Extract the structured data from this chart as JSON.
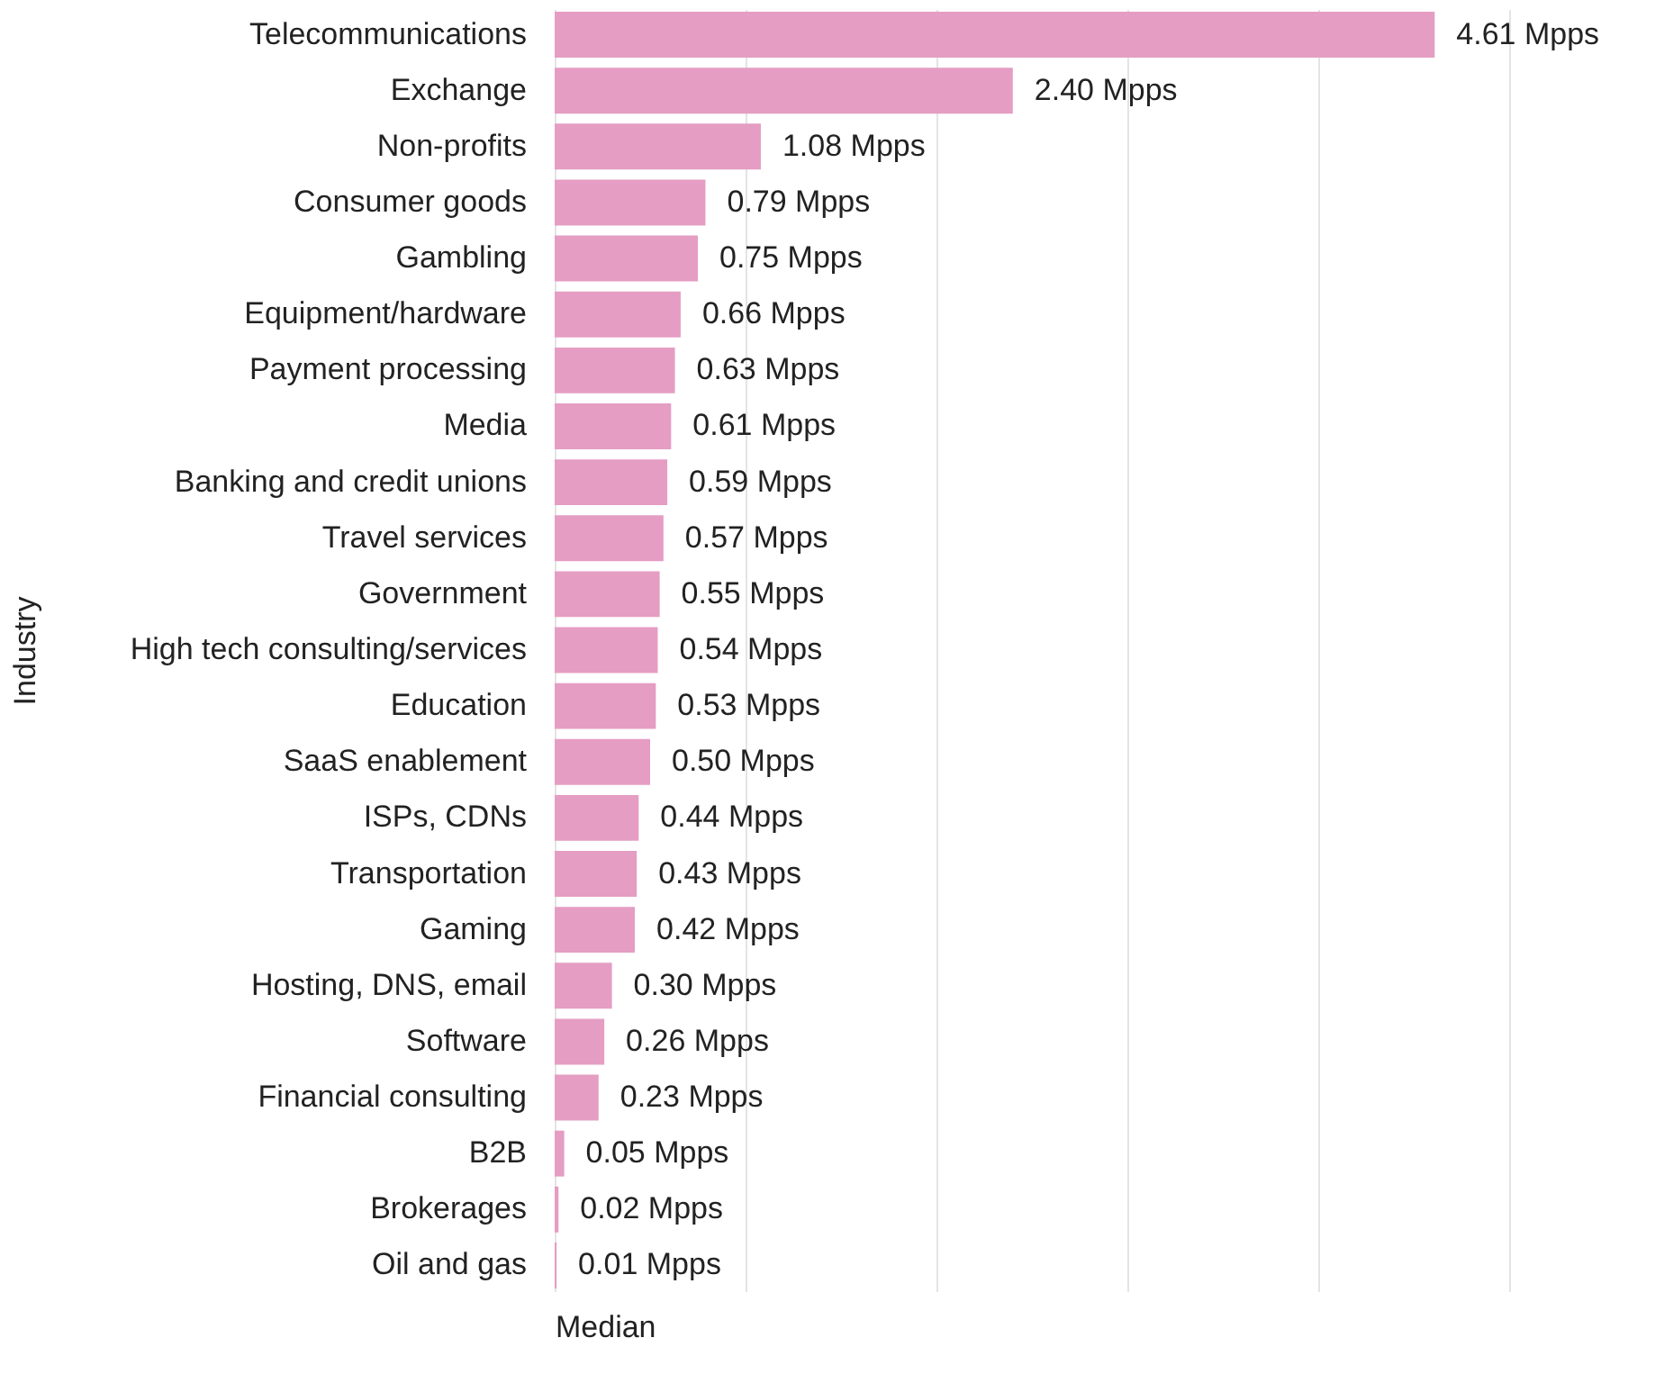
{
  "chart_data": {
    "type": "bar",
    "orientation": "horizontal",
    "xlabel": "Median",
    "ylabel": "Industry",
    "categories": [
      "Telecommunications",
      "Exchange",
      "Non-profits",
      "Consumer goods",
      "Gambling",
      "Equipment/hardware",
      "Payment processing",
      "Media",
      "Banking and credit unions",
      "Travel services",
      "Government",
      "High tech consulting/services",
      "Education",
      "SaaS enablement",
      "ISPs, CDNs",
      "Transportation",
      "Gaming",
      "Hosting, DNS, email",
      "Software",
      "Financial consulting",
      "B2B",
      "Brokerages",
      "Oil and gas"
    ],
    "values": [
      4.61,
      2.4,
      1.08,
      0.79,
      0.75,
      0.66,
      0.63,
      0.61,
      0.59,
      0.57,
      0.55,
      0.54,
      0.53,
      0.5,
      0.44,
      0.43,
      0.42,
      0.3,
      0.26,
      0.23,
      0.05,
      0.02,
      0.01
    ],
    "value_labels": [
      "4.61 Mpps",
      "2.40 Mpps",
      "1.08 Mpps",
      "0.79 Mpps",
      "0.75 Mpps",
      "0.66 Mpps",
      "0.63 Mpps",
      "0.61 Mpps",
      "0.59 Mpps",
      "0.57 Mpps",
      "0.55 Mpps",
      "0.54 Mpps",
      "0.53 Mpps",
      "0.50 Mpps",
      "0.44 Mpps",
      "0.43 Mpps",
      "0.42 Mpps",
      "0.30 Mpps",
      "0.26 Mpps",
      "0.23 Mpps",
      "0.05 Mpps",
      "0.02 Mpps",
      "0.01 Mpps"
    ],
    "color": "#e59dc3",
    "xlim": [
      0,
      5
    ],
    "xticks": [
      {
        "value": 0,
        "label": null
      },
      {
        "value": 1,
        "label": null
      },
      {
        "value": 2,
        "label": null
      },
      {
        "value": 3,
        "label": null
      },
      {
        "value": 4,
        "label": null
      },
      {
        "value": 5,
        "label": null
      }
    ],
    "tick_labels": "y",
    "grid": "x"
  }
}
